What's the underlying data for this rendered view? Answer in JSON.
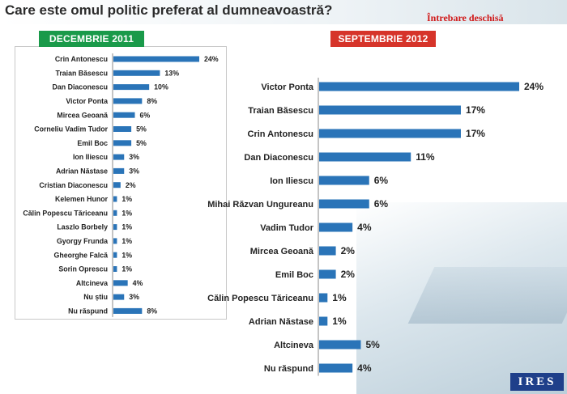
{
  "title": "Care este omul politic preferat al dumneavoastră?",
  "note": "Întrebare deschisă",
  "logo": "IRES",
  "colors": {
    "bar": "#2a74b8",
    "left_badge": "#1a9a4a",
    "right_badge": "#d6342a"
  },
  "chart_data": [
    {
      "type": "bar",
      "orientation": "horizontal",
      "period": "DECEMBRIE 2011",
      "categories": [
        "Crin Antonescu",
        "Traian Băsescu",
        "Dan Diaconescu",
        "Victor Ponta",
        "Mircea Geoană",
        "Corneliu Vadim Tudor",
        "Emil Boc",
        "Ion Iliescu",
        "Adrian Năstase",
        "Cristian Diaconescu",
        "Kelemen Hunor",
        "Călin Popescu Tăriceanu",
        "Laszlo Borbely",
        "Gyorgy Frunda",
        "Gheorghe Falcă",
        "Sorin Oprescu",
        "Altcineva",
        "Nu știu",
        "Nu răspund"
      ],
      "values": [
        24,
        13,
        10,
        8,
        6,
        5,
        5,
        3,
        3,
        2,
        1,
        1,
        1,
        1,
        1,
        1,
        4,
        3,
        8
      ],
      "labels": [
        "24%",
        "13%",
        "10%",
        "8%",
        "6%",
        "5%",
        "5%",
        "3%",
        "3%",
        "2%",
        "1%",
        "1%",
        "1%",
        "1%",
        "1%",
        "1%",
        "4%",
        "3%",
        "8%"
      ],
      "xlim": [
        0,
        24
      ]
    },
    {
      "type": "bar",
      "orientation": "horizontal",
      "period": "SEPTEMBRIE 2012",
      "categories": [
        "Victor Ponta",
        "Traian Băsescu",
        "Crin Antonescu",
        "Dan Diaconescu",
        "Ion Iliescu",
        "Mihai Răzvan Ungureanu",
        "Vadim Tudor",
        "Mircea Geoană",
        "Emil Boc",
        "Călin Popescu Tăriceanu",
        "Adrian Năstase",
        "Altcineva",
        "Nu răspund"
      ],
      "values": [
        24,
        17,
        17,
        11,
        6,
        6,
        4,
        2,
        2,
        1,
        1,
        5,
        4
      ],
      "labels": [
        "24%",
        "17%",
        "17%",
        "11%",
        "6%",
        "6%",
        "4%",
        "2%",
        "2%",
        "1%",
        "1%",
        "5%",
        "4%"
      ],
      "xlim": [
        0,
        24
      ]
    }
  ]
}
